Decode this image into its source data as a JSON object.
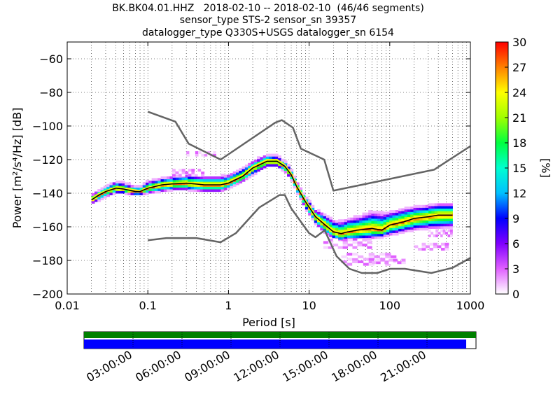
{
  "title_lines": [
    "BK.BK04.01.HHZ   2018-02-10 -- 2018-02-10  (46/46 segments)",
    "sensor_type STS-2 sensor_sn 39357",
    "datalogger_type Q330S+USGS datalogger_sn 6154"
  ],
  "colors": {
    "noise_model": "#646464",
    "mode_line": "#000000",
    "mean_line": "#ffff00",
    "coverage_green": "#008000",
    "coverage_blue": "#0000ff"
  },
  "chart_data": [
    {
      "type": "heatmap",
      "subtype": "probabilistic power spectral density",
      "xlabel": "Period [s]",
      "ylabel": "Power [m²/s⁴/Hz] [dB]",
      "x_scale": "log",
      "xlim": [
        0.01,
        1000
      ],
      "ylim": [
        -200,
        -50
      ],
      "x_ticks": [
        0.01,
        0.1,
        1,
        10,
        100,
        1000
      ],
      "x_tick_labels": [
        "0.01",
        "0.1",
        "1",
        "10",
        "100",
        "1000"
      ],
      "y_ticks": [
        -200,
        -180,
        -160,
        -140,
        -120,
        -100,
        -80,
        -60
      ],
      "y_tick_labels": [
        "−200",
        "−180",
        "−160",
        "−140",
        "−120",
        "−100",
        "−80",
        "−60"
      ],
      "grid": true,
      "colorbar": {
        "label": "[%]",
        "range": [
          0,
          30
        ],
        "ticks": [
          "0",
          "3",
          "6",
          "9",
          "12",
          "15",
          "18",
          "21",
          "24",
          "27",
          "30"
        ]
      },
      "new_high_noise_model": {
        "x": [
          0.1,
          0.22,
          0.32,
          0.8,
          3.8,
          4.6,
          6.3,
          7.9,
          15.4,
          20,
          354.8,
          1000
        ],
        "y": [
          -91.5,
          -97.4,
          -110.5,
          -120,
          -98,
          -96.5,
          -101,
          -113.5,
          -120,
          -138.5,
          -126,
          -112
        ]
      },
      "new_low_noise_model": {
        "x": [
          0.1,
          0.17,
          0.4,
          0.8,
          1.24,
          2.4,
          4.3,
          5,
          6,
          10,
          12,
          15.6,
          21.9,
          31.6,
          45,
          70,
          101,
          154,
          328,
          600,
          1000
        ],
        "y": [
          -168,
          -166.7,
          -166.7,
          -169.2,
          -163.7,
          -148.6,
          -141.1,
          -141.1,
          -149,
          -163.8,
          -166.2,
          -162.1,
          -177.5,
          -185,
          -187.5,
          -187.5,
          -185,
          -185,
          -187.5,
          -184.4,
          -178.5
        ]
      },
      "mode_curve": {
        "x": [
          0.02,
          0.025,
          0.03,
          0.04,
          0.05,
          0.07,
          0.08,
          0.1,
          0.15,
          0.2,
          0.3,
          0.5,
          0.8,
          1,
          1.5,
          2,
          3,
          4,
          5,
          6,
          7,
          9,
          12,
          15,
          20,
          25,
          30,
          40,
          60,
          80,
          100,
          150,
          200,
          300,
          400,
          600
        ],
        "y": [
          -144,
          -141,
          -139,
          -137,
          -137.5,
          -139,
          -139,
          -137,
          -135,
          -134.5,
          -134,
          -135,
          -135,
          -134,
          -130,
          -125,
          -121,
          -121,
          -124,
          -129,
          -136,
          -145,
          -154,
          -158,
          -163,
          -164,
          -163,
          -162,
          -161,
          -162,
          -159,
          -157,
          -155,
          -154,
          -153,
          -153
        ]
      },
      "mean_curve": {
        "x": [
          0.02,
          0.025,
          0.03,
          0.04,
          0.05,
          0.07,
          0.08,
          0.1,
          0.15,
          0.2,
          0.3,
          0.5,
          0.8,
          1,
          1.5,
          2,
          3,
          4,
          5,
          6,
          7,
          9,
          12,
          15,
          20,
          25,
          30,
          40,
          60,
          80,
          100,
          150,
          200,
          300,
          400,
          600
        ],
        "y": [
          -143,
          -140,
          -138.5,
          -136.5,
          -137,
          -138,
          -138.5,
          -136.5,
          -134.5,
          -134,
          -133.5,
          -134.5,
          -134.5,
          -133,
          -129,
          -124,
          -120,
          -120,
          -123,
          -128,
          -135,
          -144,
          -153,
          -157,
          -162,
          -163.5,
          -162.5,
          -161,
          -160,
          -161,
          -158,
          -156,
          -154.5,
          -153.5,
          -152.5,
          -152.5
        ]
      },
      "upper_envelope": {
        "x": [
          0.02,
          0.025,
          0.03,
          0.04,
          0.05,
          0.07,
          0.08,
          0.1,
          0.15,
          0.2,
          0.3,
          0.5,
          0.8,
          1,
          1.5,
          2,
          3,
          4,
          5,
          6,
          7,
          9,
          12,
          15,
          20,
          25,
          30,
          40,
          60,
          80,
          100,
          150,
          200,
          300,
          400,
          600
        ],
        "y": [
          -141,
          -138,
          -136,
          -133,
          -134,
          -136,
          -136,
          -133,
          -131,
          -130,
          -129,
          -130,
          -130,
          -129,
          -125,
          -121,
          -117,
          -118,
          -121,
          -126,
          -133,
          -142,
          -150,
          -152,
          -156,
          -157,
          -155,
          -154,
          -151,
          -152,
          -151,
          -149,
          -148,
          -147,
          -146,
          -146
        ]
      },
      "lower_envelope": {
        "x": [
          0.02,
          0.025,
          0.03,
          0.04,
          0.05,
          0.07,
          0.08,
          0.1,
          0.15,
          0.2,
          0.3,
          0.5,
          0.8,
          1,
          1.5,
          2,
          3,
          4,
          5,
          6,
          7,
          9,
          12,
          15,
          20,
          25,
          30,
          40,
          60,
          80,
          100,
          150,
          200,
          300,
          400,
          600
        ],
        "y": [
          -146,
          -144,
          -142,
          -140,
          -140,
          -141,
          -141,
          -140,
          -139,
          -138,
          -138,
          -139,
          -139,
          -137,
          -133,
          -129,
          -124,
          -124,
          -127,
          -132,
          -139,
          -149,
          -158,
          -163,
          -167,
          -169,
          -168,
          -168,
          -167,
          -166,
          -165,
          -163,
          -162,
          -161,
          -161,
          -160
        ]
      },
      "spurious_blobs": [
        {
          "x": [
            0.2,
            0.5
          ],
          "y": [
            -130,
            -126
          ]
        },
        {
          "x": [
            0.3,
            0.7
          ],
          "y": [
            -118,
            -115
          ]
        },
        {
          "x": [
            15,
            60
          ],
          "y": [
            -173,
            -168
          ]
        },
        {
          "x": [
            25,
            120
          ],
          "y": [
            -183,
            -176
          ]
        },
        {
          "x": [
            60,
            200
          ],
          "y": [
            -182,
            -180
          ]
        },
        {
          "x": [
            200,
            600
          ],
          "y": [
            -174,
            -170
          ]
        },
        {
          "x": [
            300,
            600
          ],
          "y": [
            -166,
            -162
          ]
        }
      ]
    },
    {
      "type": "bar",
      "subtype": "data coverage timeline",
      "x_tick_labels": [
        "03:00:00",
        "06:00:00",
        "09:00:00",
        "12:00:00",
        "15:00:00",
        "18:00:00",
        "21:00:00"
      ],
      "x_ticks_hours": [
        3,
        6,
        9,
        12,
        15,
        18,
        21
      ],
      "xlim_hours": [
        0,
        24
      ],
      "green_coverage_fraction": 1.0,
      "blue_coverage_fraction": 0.975
    }
  ]
}
